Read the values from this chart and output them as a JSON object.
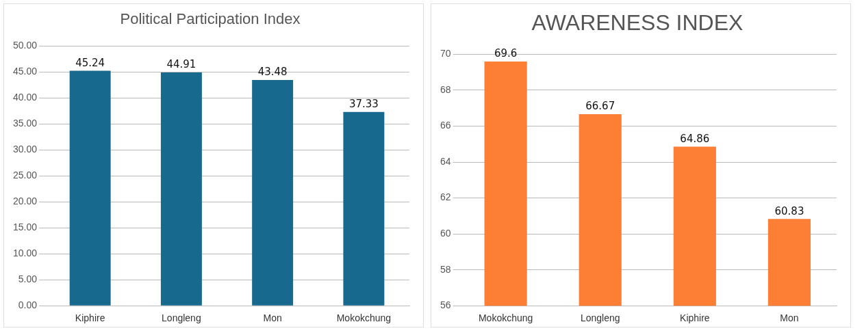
{
  "chart_data": [
    {
      "type": "bar",
      "title": "Political Participation Index",
      "categories": [
        "Kiphire",
        "Longleng",
        "Mon",
        "Mokokchung"
      ],
      "values": [
        45.24,
        44.91,
        43.48,
        37.33
      ],
      "color": "#17698e",
      "ylim": [
        0,
        50
      ],
      "yticks": [
        {
          "value": 0,
          "label": "0.00"
        },
        {
          "value": 5,
          "label": "5.00"
        },
        {
          "value": 10,
          "label": "10.00"
        },
        {
          "value": 15,
          "label": "15.00"
        },
        {
          "value": 20,
          "label": "20.00"
        },
        {
          "value": 25,
          "label": "25.00"
        },
        {
          "value": 30,
          "label": "30.00"
        },
        {
          "value": 35,
          "label": "35.00"
        },
        {
          "value": 40,
          "label": "40.00"
        },
        {
          "value": 45,
          "label": "45.00"
        },
        {
          "value": 50,
          "label": "50.00"
        }
      ],
      "grid": "y",
      "data_labels": true
    },
    {
      "type": "bar",
      "title": "AWARENESS INDEX",
      "categories": [
        "Mokokchung",
        "Longleng",
        "Kiphire",
        "Mon"
      ],
      "values": [
        69.6,
        66.67,
        64.86,
        60.83
      ],
      "color": "#fd7f36",
      "ylim": [
        56,
        70
      ],
      "yticks": [
        56,
        58,
        60,
        62,
        64,
        66,
        68,
        70
      ],
      "grid": "y",
      "data_labels": true
    }
  ]
}
